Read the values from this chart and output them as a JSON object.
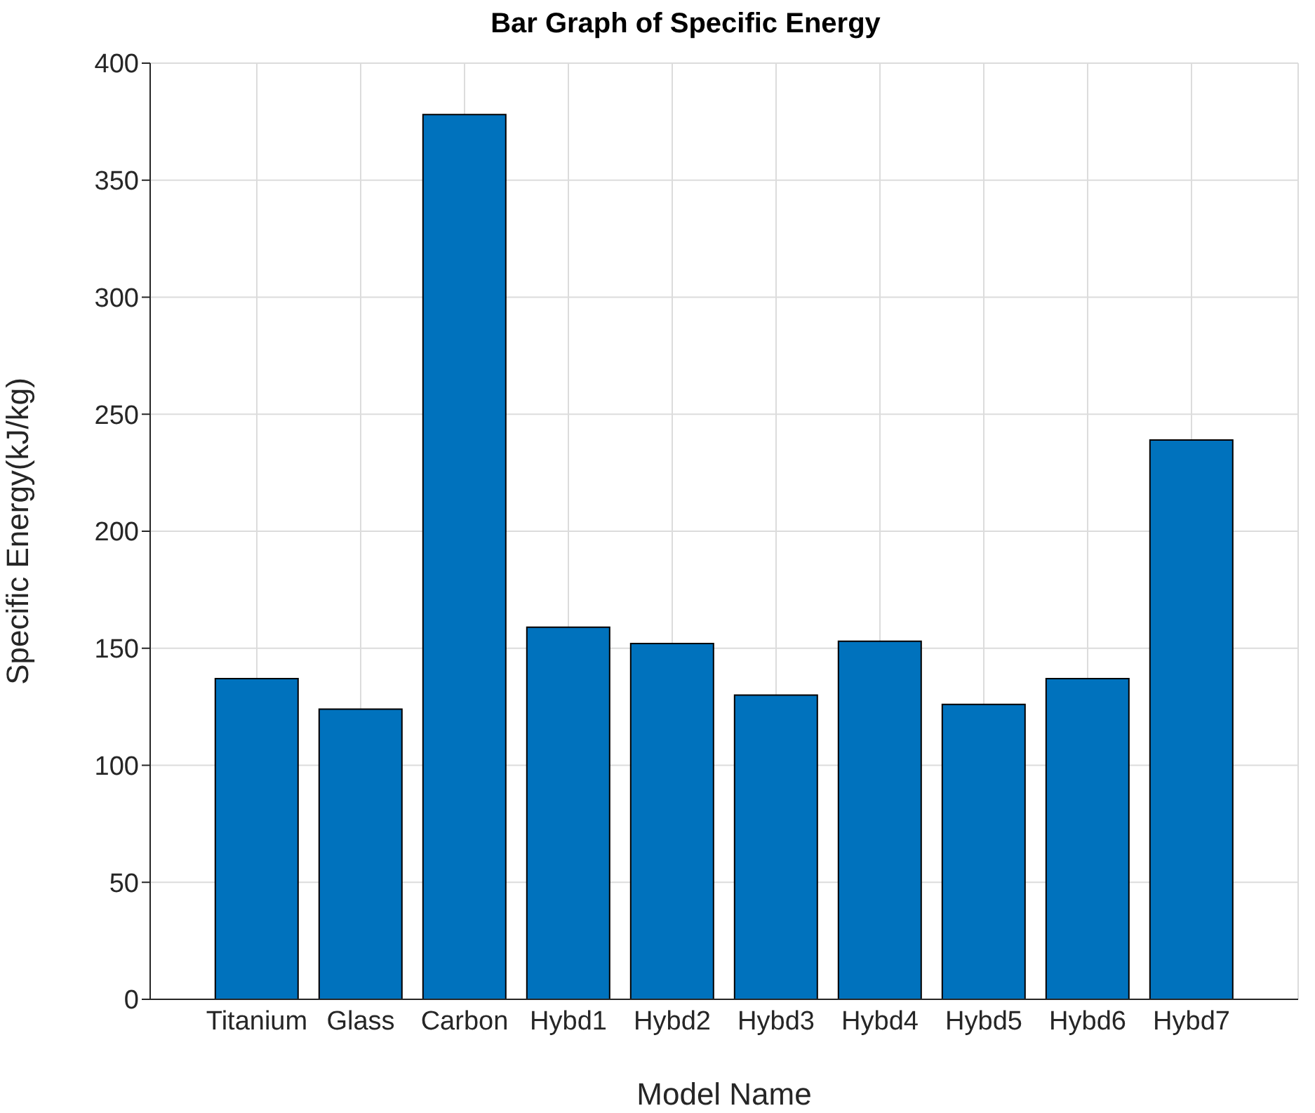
{
  "chart_data": {
    "type": "bar",
    "title": "Bar Graph of Specific Energy",
    "xlabel": "Model Name",
    "ylabel": "Specific Energy(kJ/kg)",
    "categories": [
      "Titanium",
      "Glass",
      "Carbon",
      "Hybd1",
      "Hybd2",
      "Hybd3",
      "Hybd4",
      "Hybd5",
      "Hybd6",
      "Hybd7"
    ],
    "values": [
      137,
      124,
      378,
      159,
      152,
      130,
      153,
      126,
      137,
      239
    ],
    "color": "#0072bd",
    "ylim": [
      0,
      400
    ],
    "yticks": [
      0,
      50,
      100,
      150,
      200,
      250,
      300,
      350,
      400
    ],
    "grid": true
  }
}
